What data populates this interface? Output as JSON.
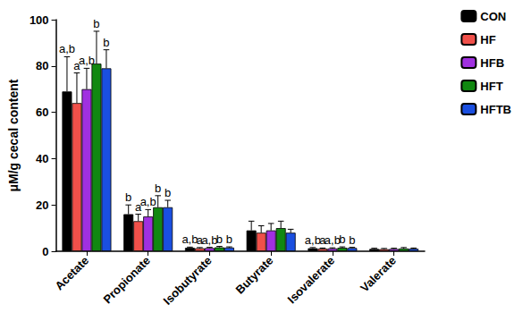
{
  "chart_data": {
    "type": "bar",
    "y_label": "μM/g cecal content",
    "categories": [
      "Acetate",
      "Propionate",
      "Isobutyrate",
      "Butyrate",
      "Isovalerate",
      "Valerate"
    ],
    "ylim": [
      0,
      100
    ],
    "yticks": [
      0,
      20,
      40,
      60,
      80,
      100
    ],
    "grid": false,
    "legend": "right",
    "series": [
      {
        "name": "CON",
        "color": "#000000",
        "values": [
          69,
          16,
          1.5,
          9,
          1.3,
          1.0
        ],
        "errors": [
          15,
          4,
          0.3,
          4,
          0.3,
          0.3
        ],
        "annotations": [
          "a,b",
          "b",
          "a,b",
          null,
          "a,b",
          null
        ]
      },
      {
        "name": "HF",
        "color": "#f0504a",
        "values": [
          64,
          13,
          1.3,
          8,
          1.1,
          0.9
        ],
        "errors": [
          13,
          3,
          0.3,
          3,
          0.3,
          0.3
        ],
        "annotations": [
          "a",
          "a",
          "a",
          null,
          "a",
          null
        ]
      },
      {
        "name": "HFB",
        "color": "#a030e0",
        "values": [
          70,
          15,
          1.4,
          9,
          1.2,
          1.0
        ],
        "errors": [
          9,
          3,
          0.3,
          3,
          0.3,
          0.3
        ],
        "annotations": [
          "a,b",
          "a,b",
          "a,b",
          null,
          "a,b",
          null
        ]
      },
      {
        "name": "HFT",
        "color": "#118811",
        "values": [
          81,
          19,
          1.7,
          10,
          1.5,
          1.2
        ],
        "errors": [
          14,
          5,
          0.4,
          3,
          0.4,
          0.4
        ],
        "annotations": [
          "b",
          "b",
          "b",
          null,
          "b",
          null
        ]
      },
      {
        "name": "HFTB",
        "color": "#1a4fe0",
        "values": [
          79,
          19,
          1.6,
          8,
          1.4,
          1.1
        ],
        "errors": [
          8,
          3,
          0.3,
          1.5,
          0.3,
          0.3
        ],
        "annotations": [
          "b",
          "b",
          "b",
          null,
          "b",
          null
        ]
      }
    ]
  }
}
